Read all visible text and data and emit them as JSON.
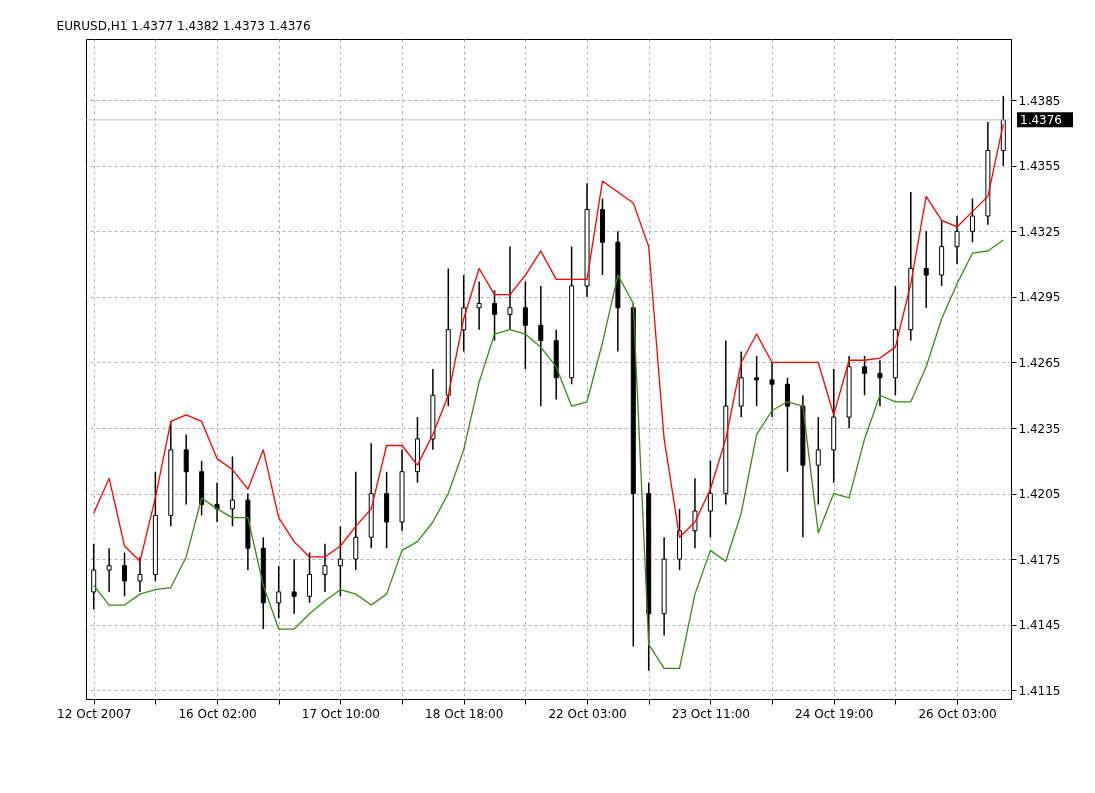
{
  "chart_data": {
    "type": "candlestick",
    "title": "EURUSD,H1  1.4377 1.4382 1.4373 1.4376",
    "color": "#000000",
    "categories": [
      "12 Oct 2007",
      null,
      null,
      null,
      null,
      null,
      null,
      null,
      "16 Oct 02:00",
      null,
      null,
      null,
      null,
      null,
      null,
      null,
      "17 Oct 10:00",
      null,
      null,
      null,
      null,
      null,
      null,
      null,
      "18 Oct 18:00",
      null,
      null,
      null,
      null,
      null,
      null,
      null,
      "22 Oct 03:00",
      null,
      null,
      null,
      null,
      null,
      null,
      null,
      "23 Oct 11:00",
      null,
      null,
      null,
      null,
      null,
      null,
      null,
      "24 Oct 19:00",
      null,
      null,
      null,
      null,
      null,
      null,
      null,
      "26 Oct 03:00",
      null,
      null,
      null
    ],
    "ohlc": [
      [
        1.416,
        1.4182,
        1.4152,
        1.417
      ],
      [
        1.417,
        1.418,
        1.416,
        1.4172
      ],
      [
        1.4172,
        1.4178,
        1.4158,
        1.4165
      ],
      [
        1.4165,
        1.4176,
        1.416,
        1.4168
      ],
      [
        1.4168,
        1.4215,
        1.4165,
        1.4195
      ],
      [
        1.4195,
        1.4238,
        1.419,
        1.4225
      ],
      [
        1.4225,
        1.4232,
        1.42,
        1.4215
      ],
      [
        1.4215,
        1.422,
        1.4195,
        1.42
      ],
      [
        1.42,
        1.421,
        1.4192,
        1.4198
      ],
      [
        1.4198,
        1.4222,
        1.419,
        1.4202
      ],
      [
        1.4202,
        1.4205,
        1.417,
        1.418
      ],
      [
        1.418,
        1.4185,
        1.4143,
        1.4155
      ],
      [
        1.4155,
        1.4172,
        1.4148,
        1.416
      ],
      [
        1.416,
        1.4175,
        1.415,
        1.4158
      ],
      [
        1.4158,
        1.4178,
        1.4155,
        1.4168
      ],
      [
        1.4168,
        1.4182,
        1.416,
        1.4172
      ],
      [
        1.4172,
        1.419,
        1.4158,
        1.4175
      ],
      [
        1.4175,
        1.4215,
        1.417,
        1.4185
      ],
      [
        1.4185,
        1.4228,
        1.418,
        1.4205
      ],
      [
        1.4205,
        1.4215,
        1.418,
        1.4192
      ],
      [
        1.4192,
        1.4225,
        1.4188,
        1.4215
      ],
      [
        1.4215,
        1.424,
        1.421,
        1.423
      ],
      [
        1.423,
        1.4262,
        1.4225,
        1.425
      ],
      [
        1.425,
        1.4308,
        1.4245,
        1.428
      ],
      [
        1.428,
        1.4305,
        1.427,
        1.429
      ],
      [
        1.429,
        1.4302,
        1.428,
        1.4292
      ],
      [
        1.4292,
        1.4298,
        1.4275,
        1.4287
      ],
      [
        1.4287,
        1.4318,
        1.428,
        1.429
      ],
      [
        1.429,
        1.4302,
        1.4262,
        1.4282
      ],
      [
        1.4282,
        1.43,
        1.4245,
        1.4275
      ],
      [
        1.4275,
        1.428,
        1.4248,
        1.4258
      ],
      [
        1.4258,
        1.4318,
        1.4255,
        1.43
      ],
      [
        1.43,
        1.4347,
        1.4295,
        1.4335
      ],
      [
        1.4335,
        1.434,
        1.4305,
        1.432
      ],
      [
        1.432,
        1.4325,
        1.427,
        1.429
      ],
      [
        1.429,
        1.4292,
        1.4135,
        1.4205
      ],
      [
        1.4205,
        1.421,
        1.4124,
        1.415
      ],
      [
        1.415,
        1.4185,
        1.414,
        1.4175
      ],
      [
        1.4175,
        1.4198,
        1.417,
        1.4188
      ],
      [
        1.4188,
        1.4212,
        1.418,
        1.4197
      ],
      [
        1.4197,
        1.422,
        1.4185,
        1.4205
      ],
      [
        1.4205,
        1.4275,
        1.42,
        1.4245
      ],
      [
        1.4245,
        1.427,
        1.424,
        1.4258
      ],
      [
        1.4258,
        1.4268,
        1.4245,
        1.4257
      ],
      [
        1.4257,
        1.4265,
        1.424,
        1.4255
      ],
      [
        1.4255,
        1.4258,
        1.4215,
        1.4245
      ],
      [
        1.4245,
        1.425,
        1.4185,
        1.4218
      ],
      [
        1.4218,
        1.424,
        1.42,
        1.4225
      ],
      [
        1.4225,
        1.4262,
        1.421,
        1.424
      ],
      [
        1.424,
        1.4268,
        1.4235,
        1.4263
      ],
      [
        1.4263,
        1.4268,
        1.425,
        1.426
      ],
      [
        1.426,
        1.4266,
        1.4245,
        1.4258
      ],
      [
        1.4258,
        1.43,
        1.425,
        1.428
      ],
      [
        1.428,
        1.4343,
        1.4275,
        1.4308
      ],
      [
        1.4308,
        1.4325,
        1.429,
        1.4305
      ],
      [
        1.4305,
        1.433,
        1.43,
        1.4318
      ],
      [
        1.4318,
        1.4332,
        1.431,
        1.4325
      ],
      [
        1.4325,
        1.434,
        1.432,
        1.4332
      ],
      [
        1.4332,
        1.4375,
        1.4328,
        1.4362
      ],
      [
        1.4362,
        1.4387,
        1.4355,
        1.4376
      ]
    ],
    "series": [
      {
        "type": "line",
        "color": "#ff0000",
        "values": [
          1.4196,
          1.4212,
          1.4181,
          1.4174,
          1.4203,
          1.4238,
          1.4241,
          1.4238,
          1.4221,
          1.4216,
          1.4207,
          1.4225,
          1.4194,
          1.4183,
          1.4176,
          1.4176,
          1.4181,
          1.419,
          1.4198,
          1.4227,
          1.4227,
          1.4218,
          1.4232,
          1.425,
          1.4285,
          1.4308,
          1.4296,
          1.4296,
          1.4305,
          1.4316,
          1.4303,
          1.4303,
          1.4303,
          1.4348,
          1.4343,
          1.4338,
          1.4318,
          1.423,
          1.4185,
          1.4192,
          1.4207,
          1.423,
          1.4265,
          1.4278,
          1.4265,
          1.4265,
          1.4265,
          1.4265,
          1.4241,
          1.4266,
          1.4266,
          1.4267,
          1.4272,
          1.4301,
          1.4341,
          1.433,
          1.4327,
          1.4334,
          1.4341,
          1.4374
        ]
      },
      {
        "type": "line",
        "color": "#3a8a1a",
        "values": [
          1.4163,
          1.4154,
          1.4154,
          1.4159,
          1.4161,
          1.4162,
          1.4176,
          1.4203,
          1.4198,
          1.4194,
          1.4194,
          1.4163,
          1.4143,
          1.4143,
          1.415,
          1.4156,
          1.4161,
          1.4159,
          1.4154,
          1.4159,
          1.4179,
          1.4183,
          1.4192,
          1.4205,
          1.4225,
          1.4256,
          1.4278,
          1.428,
          1.4278,
          1.4272,
          1.4263,
          1.4245,
          1.4247,
          1.4274,
          1.4305,
          1.4292,
          1.4136,
          1.4125,
          1.4125,
          1.4159,
          1.4179,
          1.4174,
          1.4196,
          1.4232,
          1.4243,
          1.4247,
          1.4245,
          1.4187,
          1.4205,
          1.4203,
          1.423,
          1.425,
          1.4247,
          1.4247,
          1.4263,
          1.4285,
          1.4301,
          1.4315,
          1.4316,
          1.4321
        ]
      }
    ],
    "ylim": [
      1.4111,
      1.4413
    ],
    "yticks": [
      1.4115,
      1.4145,
      1.4175,
      1.4205,
      1.4235,
      1.4265,
      1.4295,
      1.4325,
      1.4355,
      1.4385
    ],
    "ref_lines": [
      {
        "axis": "y",
        "value": 1.4376,
        "label": "1.4376",
        "color": "#c0c0c0"
      }
    ],
    "grid": true
  }
}
